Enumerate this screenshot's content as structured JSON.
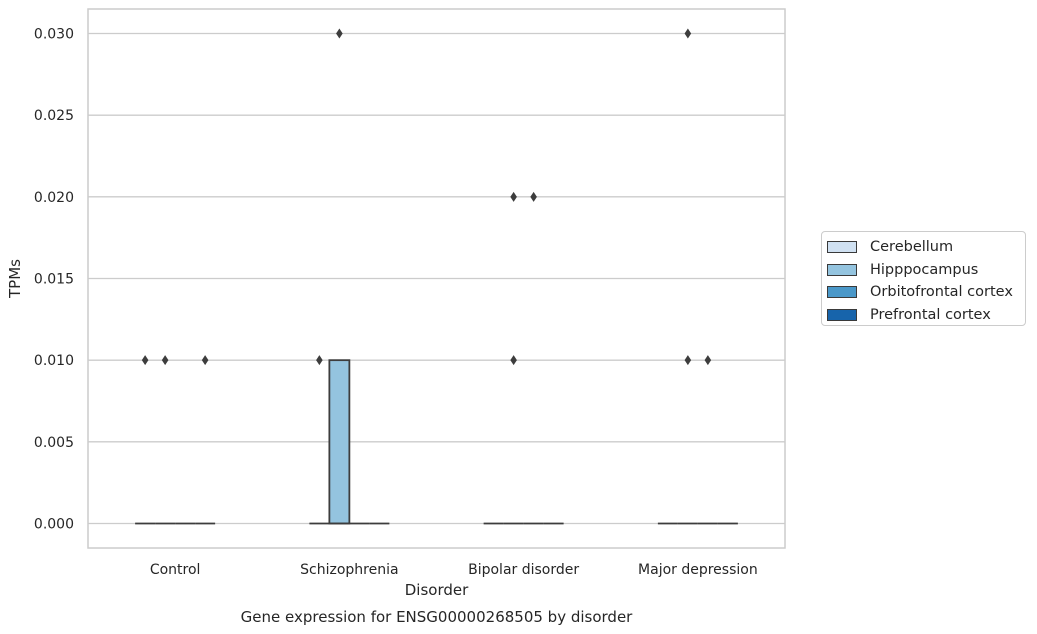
{
  "chart_data": {
    "type": "box",
    "title": "Gene expression for ENSG00000268505 by disorder",
    "xlabel": "Disorder",
    "ylabel": "TPMs",
    "ylim": [
      -0.0015,
      0.0315
    ],
    "yticks": [
      "0.000",
      "0.005",
      "0.010",
      "0.015",
      "0.020",
      "0.025",
      "0.030"
    ],
    "ytick_values": [
      0,
      0.005,
      0.01,
      0.015,
      0.02,
      0.025,
      0.03
    ],
    "categories": [
      "Control",
      "Schizophrenia",
      "Bipolar disorder",
      "Major depression"
    ],
    "grid": "horizontal",
    "legend_position": "outside-right",
    "series": [
      {
        "name": "Cerebellum",
        "color": "#d0e1f2",
        "boxes": [
          {
            "category": "Control",
            "q1": 0,
            "median": 0,
            "q3": 0,
            "outliers": [
              0.01
            ]
          },
          {
            "category": "Schizophrenia",
            "q1": 0,
            "median": 0,
            "q3": 0,
            "outliers": [
              0.01
            ]
          },
          {
            "category": "Bipolar disorder",
            "q1": 0,
            "median": 0,
            "q3": 0,
            "outliers": []
          },
          {
            "category": "Major depression",
            "q1": 0,
            "median": 0,
            "q3": 0,
            "outliers": []
          }
        ]
      },
      {
        "name": "Hipppocampus",
        "color": "#94c4df",
        "boxes": [
          {
            "category": "Control",
            "q1": 0,
            "median": 0,
            "q3": 0,
            "outliers": [
              0.01
            ]
          },
          {
            "category": "Schizophrenia",
            "q1": 0,
            "median": 0,
            "q3": 0.01,
            "outliers": [
              0.03
            ]
          },
          {
            "category": "Bipolar disorder",
            "q1": 0,
            "median": 0,
            "q3": 0,
            "outliers": [
              0.02,
              0.01
            ]
          },
          {
            "category": "Major depression",
            "q1": 0,
            "median": 0,
            "q3": 0,
            "outliers": [
              0.03,
              0.01
            ]
          }
        ]
      },
      {
        "name": "Orbitofrontal cortex",
        "color": "#4a98c9",
        "boxes": [
          {
            "category": "Control",
            "q1": 0,
            "median": 0,
            "q3": 0,
            "outliers": []
          },
          {
            "category": "Schizophrenia",
            "q1": 0,
            "median": 0,
            "q3": 0,
            "outliers": []
          },
          {
            "category": "Bipolar disorder",
            "q1": 0,
            "median": 0,
            "q3": 0,
            "outliers": [
              0.02
            ]
          },
          {
            "category": "Major depression",
            "q1": 0,
            "median": 0,
            "q3": 0,
            "outliers": [
              0.01
            ]
          }
        ]
      },
      {
        "name": "Prefrontal cortex",
        "color": "#1764ab",
        "boxes": [
          {
            "category": "Control",
            "q1": 0,
            "median": 0,
            "q3": 0,
            "outliers": [
              0.01
            ]
          },
          {
            "category": "Schizophrenia",
            "q1": 0,
            "median": 0,
            "q3": 0,
            "outliers": []
          },
          {
            "category": "Bipolar disorder",
            "q1": 0,
            "median": 0,
            "q3": 0,
            "outliers": []
          },
          {
            "category": "Major depression",
            "q1": 0,
            "median": 0,
            "q3": 0,
            "outliers": []
          }
        ]
      }
    ]
  }
}
